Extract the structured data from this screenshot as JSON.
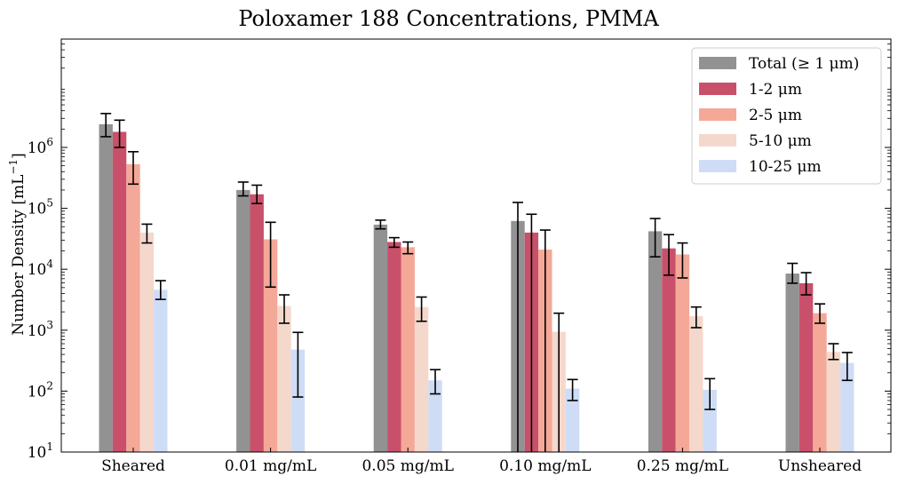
{
  "chart_data": {
    "type": "bar",
    "title": "Poloxamer 188 Concentrations, PMMA",
    "xlabel": "",
    "ylabel": "Number Density [mL",
    "ylabel_exp": "−1",
    "ylabel_close": "]",
    "yscale": "log",
    "ylim": [
      10,
      60000000
    ],
    "yticks": [
      {
        "value": 10,
        "base": "10",
        "exp": "1"
      },
      {
        "value": 100,
        "base": "10",
        "exp": "2"
      },
      {
        "value": 1000,
        "base": "10",
        "exp": "3"
      },
      {
        "value": 10000,
        "base": "10",
        "exp": "4"
      },
      {
        "value": 100000,
        "base": "10",
        "exp": "5"
      },
      {
        "value": 1000000,
        "base": "10",
        "exp": "6"
      }
    ],
    "categories": [
      "Sheared",
      "0.01 mg/mL",
      "0.05 mg/mL",
      "0.10 mg/mL",
      "0.25 mg/mL",
      "Unsheared"
    ],
    "legend_position": "top-right",
    "grid": false,
    "series": [
      {
        "name": "Total (≥ 1 μm)",
        "color": "#929292",
        "values": [
          2400000,
          200000,
          54000,
          62000,
          42000,
          8500
        ],
        "err_low": [
          1500000,
          160000,
          46000,
          10,
          16000,
          5900
        ],
        "err_high": [
          3600000,
          270000,
          64000,
          125000,
          68000,
          12500
        ]
      },
      {
        "name": "1-2 μm",
        "color": "#c9506a",
        "values": [
          1800000,
          170000,
          28000,
          40000,
          22000,
          5900
        ],
        "err_low": [
          1000000,
          120000,
          23000,
          10,
          8000,
          3800
        ],
        "err_high": [
          2800000,
          240000,
          33000,
          80000,
          37000,
          8800
        ]
      },
      {
        "name": "2-5 μm",
        "color": "#f4a898",
        "values": [
          530000,
          31000,
          23000,
          21000,
          17500,
          1900
        ],
        "err_low": [
          250000,
          5100,
          18000,
          10,
          7200,
          1300
        ],
        "err_high": [
          850000,
          59000,
          28000,
          44000,
          27000,
          2700
        ]
      },
      {
        "name": "5-10 μm",
        "color": "#f5d8cc",
        "values": [
          40000,
          2500,
          2400,
          940,
          1700,
          440
        ],
        "err_low": [
          27000,
          1300,
          1400,
          10,
          1100,
          330
        ],
        "err_high": [
          55000,
          3800,
          3500,
          1900,
          2400,
          600
        ]
      },
      {
        "name": "10-25 μm",
        "color": "#cfdcf5",
        "values": [
          4600,
          480,
          150,
          110,
          105,
          290
        ],
        "err_low": [
          3200,
          80,
          90,
          70,
          50,
          150
        ],
        "err_high": [
          6500,
          920,
          225,
          155,
          160,
          430
        ]
      }
    ]
  }
}
